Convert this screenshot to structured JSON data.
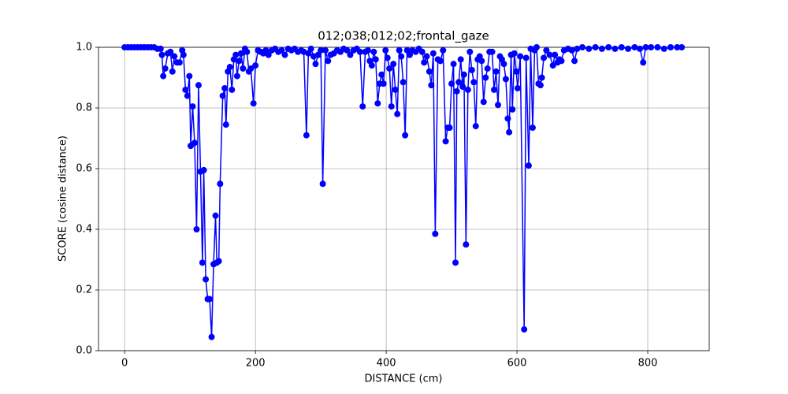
{
  "chart_data": {
    "type": "line",
    "title": "012;038;012;02;frontal_gaze",
    "x_label": "DISTANCE (cm)",
    "y_label": "SCORE (cosine distance)",
    "xlim": [
      -40,
      894
    ],
    "ylim": [
      0,
      1
    ],
    "xticks": [
      0,
      200,
      400,
      600,
      800
    ],
    "yticks": [
      {
        "value": 0,
        "label": "0.0"
      },
      0.2,
      0.4,
      0.6,
      0.8,
      {
        "value": 1,
        "label": "1.0"
      }
    ],
    "grid": true,
    "x": [
      0,
      5,
      10,
      15,
      20,
      25,
      30,
      35,
      40,
      45,
      50,
      55,
      57,
      59,
      62,
      66,
      70,
      73,
      76,
      80,
      84,
      88,
      90,
      93,
      96,
      99,
      101,
      104,
      107,
      110,
      113,
      116,
      119,
      121,
      124,
      127,
      130,
      133,
      136,
      139,
      141,
      144,
      146,
      150,
      153,
      155,
      158,
      161,
      164,
      167,
      170,
      172,
      175,
      178,
      181,
      184,
      187,
      190,
      193,
      197,
      200,
      204,
      208,
      212,
      216,
      220,
      225,
      230,
      235,
      240,
      245,
      250,
      255,
      260,
      265,
      270,
      274,
      278,
      281,
      285,
      289,
      292,
      296,
      300,
      303,
      307,
      311,
      315,
      320,
      325,
      330,
      335,
      340,
      345,
      350,
      355,
      360,
      364,
      368,
      372,
      375,
      378,
      381,
      384,
      387,
      390,
      393,
      396,
      399,
      402,
      405,
      408,
      411,
      414,
      417,
      420,
      423,
      426,
      429,
      432,
      436,
      440,
      445,
      450,
      455,
      458,
      462,
      466,
      469,
      472,
      475,
      479,
      483,
      487,
      491,
      494,
      497,
      500,
      503,
      506,
      508,
      511,
      514,
      517,
      519,
      522,
      525,
      528,
      531,
      534,
      537,
      540,
      543,
      546,
      549,
      552,
      555,
      558,
      562,
      565,
      568,
      571,
      574,
      577,
      580,
      583,
      586,
      588,
      591,
      593,
      596,
      599,
      601,
      605,
      611,
      614,
      618,
      621,
      624,
      627,
      630,
      633,
      636,
      638,
      641,
      645,
      650,
      655,
      658,
      662,
      665,
      668,
      672,
      678,
      684,
      688,
      692,
      700,
      710,
      720,
      730,
      740,
      750,
      760,
      770,
      780,
      788,
      793,
      797,
      805,
      815,
      825,
      835,
      845,
      852
    ],
    "series": [
      {
        "name": "score",
        "color": "#0000ff",
        "values": [
          1,
          1,
          1,
          1,
          1,
          1,
          1,
          1,
          1,
          1,
          0.995,
          0.995,
          0.975,
          0.905,
          0.93,
          0.98,
          0.985,
          0.92,
          0.97,
          0.95,
          0.95,
          0.99,
          0.975,
          0.86,
          0.84,
          0.905,
          0.675,
          0.805,
          0.685,
          0.4,
          0.875,
          0.59,
          0.29,
          0.595,
          0.235,
          0.17,
          0.17,
          0.045,
          0.285,
          0.445,
          0.29,
          0.295,
          0.55,
          0.84,
          0.865,
          0.745,
          0.92,
          0.935,
          0.86,
          0.96,
          0.975,
          0.905,
          0.955,
          0.98,
          0.93,
          0.995,
          0.985,
          0.92,
          0.93,
          0.815,
          0.94,
          0.99,
          0.985,
          0.98,
          0.99,
          0.975,
          0.99,
          0.995,
          0.985,
          0.99,
          0.975,
          0.995,
          0.99,
          0.995,
          0.985,
          0.99,
          0.985,
          0.71,
          0.98,
          0.995,
          0.97,
          0.945,
          0.975,
          0.99,
          0.55,
          0.99,
          0.955,
          0.975,
          0.98,
          0.99,
          0.985,
          0.995,
          0.99,
          0.975,
          0.99,
          0.995,
          0.985,
          0.805,
          0.985,
          0.99,
          0.955,
          0.94,
          0.985,
          0.96,
          0.815,
          0.88,
          0.91,
          0.88,
          0.99,
          0.965,
          0.93,
          0.805,
          0.945,
          0.86,
          0.78,
          0.99,
          0.97,
          0.885,
          0.71,
          0.99,
          0.975,
          0.99,
          0.985,
          0.995,
          0.985,
          0.95,
          0.97,
          0.92,
          0.875,
          0.98,
          0.385,
          0.96,
          0.955,
          0.99,
          0.69,
          0.735,
          0.735,
          0.88,
          0.945,
          0.29,
          0.855,
          0.885,
          0.96,
          0.87,
          0.91,
          0.35,
          0.86,
          0.985,
          0.925,
          0.885,
          0.74,
          0.96,
          0.97,
          0.955,
          0.82,
          0.9,
          0.93,
          0.985,
          0.985,
          0.86,
          0.92,
          0.81,
          0.97,
          0.96,
          0.945,
          0.895,
          0.765,
          0.72,
          0.975,
          0.795,
          0.98,
          0.92,
          0.865,
          0.97,
          0.07,
          0.965,
          0.61,
          0.995,
          0.735,
          0.99,
          1,
          0.88,
          0.875,
          0.9,
          0.965,
          0.99,
          0.975,
          0.94,
          0.975,
          0.95,
          0.96,
          0.955,
          0.99,
          0.995,
          0.99,
          0.955,
          0.995,
          1,
          0.995,
          1,
          0.995,
          1,
          0.995,
          1,
          0.995,
          1,
          0.995,
          0.95,
          1,
          1,
          1,
          0.995,
          1,
          1,
          1
        ]
      }
    ]
  }
}
